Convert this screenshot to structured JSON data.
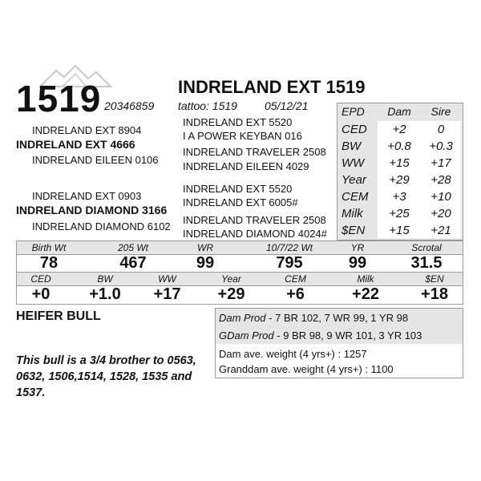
{
  "lot_number": "1519",
  "animal_name": "INDRELAND EXT 1519",
  "registration": "20346859",
  "tattoo": "tattoo: 1519",
  "birth_date": "05/12/21",
  "pedigree": {
    "sire": "INDRELAND EXT 4666",
    "sire_sire": "INDRELAND EXT 8904",
    "sire_dam": "INDRELAND EILEEN 0106",
    "dam": "INDRELAND DIAMOND 3166",
    "dam_sire": "INDRELAND EXT 0903",
    "dam_dam": "INDRELAND DIAMOND 6102",
    "col2": [
      "INDRELAND EXT 5520",
      "I A POWER KEYBAN 016",
      "INDRELAND TRAVELER 2508",
      "INDRELAND EILEEN 4029",
      "INDRELAND EXT 5520",
      "INDRELAND EXT 6005#",
      "INDRELAND TRAVELER 2508",
      "INDRELAND DIAMOND 4024#"
    ]
  },
  "epd_table": {
    "headers": [
      "EPD",
      "Dam",
      "Sire"
    ],
    "rows": [
      {
        "label": "CED",
        "dam": "+2",
        "sire": "0"
      },
      {
        "label": "BW",
        "dam": "+0.8",
        "sire": "+0.3"
      },
      {
        "label": "WW",
        "dam": "+15",
        "sire": "+17"
      },
      {
        "label": "Year",
        "dam": "+29",
        "sire": "+28"
      },
      {
        "label": "CEM",
        "dam": "+3",
        "sire": "+10"
      },
      {
        "label": "Milk",
        "dam": "+25",
        "sire": "+20"
      },
      {
        "label": "$EN",
        "dam": "+15",
        "sire": "+21"
      }
    ]
  },
  "performance": [
    {
      "label": "Birth Wt",
      "value": "78"
    },
    {
      "label": "205 Wt",
      "value": "467"
    },
    {
      "label": "WR",
      "value": "99"
    },
    {
      "label": "10/7/22 Wt",
      "value": "795"
    },
    {
      "label": "YR",
      "value": "99"
    },
    {
      "label": "Scrotal",
      "value": "31.5"
    }
  ],
  "epds": [
    {
      "label": "CED",
      "value": "+0"
    },
    {
      "label": "BW",
      "value": "+1.0"
    },
    {
      "label": "WW",
      "value": "+17"
    },
    {
      "label": "Year",
      "value": "+29"
    },
    {
      "label": "CEM",
      "value": "+6"
    },
    {
      "label": "Milk",
      "value": "+22"
    },
    {
      "label": "$EN",
      "value": "+18"
    }
  ],
  "status": "HEIFER BULL",
  "production": {
    "dam_prod_label": "Dam Prod",
    "dam_prod": " - 7 BR 102, 7 WR 99, 1 YR 98",
    "gdam_prod_label": "GDam Prod",
    "gdam_prod": " - 9 BR 98, 9 WR 101, 3 YR 103",
    "dam_weight": "Dam ave. weight (4 yrs+) : 1257",
    "granddam_weight": "Granddam ave. weight (4 yrs+) : 1100"
  },
  "note": "This bull is a 3/4 brother to 0563, 0632, 1506,1514, 1528, 1535 and 1537."
}
